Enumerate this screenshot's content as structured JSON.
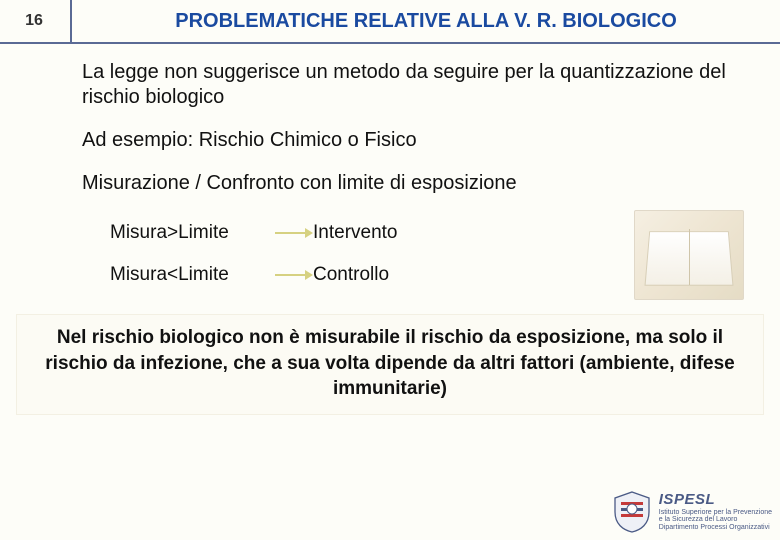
{
  "colors": {
    "title": "#1a4aa0",
    "rule": "#5a6a95",
    "arrow": "#d6d181",
    "logo_primary": "#4a5a85",
    "logo_accent": "#c43a3a"
  },
  "page_number": "16",
  "title": "PROBLEMATICHE RELATIVE ALLA V. R. BIOLOGICO",
  "para1": "La legge non suggerisce un metodo da seguire per la quantizzazione del rischio biologico",
  "para2": "Ad esempio:  Rischio Chimico o Fisico",
  "para3": "Misurazione  / Confronto con limite di esposizione",
  "comparisons": [
    {
      "left": "Misura>Limite",
      "right": "Intervento"
    },
    {
      "left": "Misura<Limite",
      "right": "Controllo"
    }
  ],
  "note": "Nel rischio biologico non è misurabile il rischio da esposizione, ma solo il rischio da infezione, che a sua volta dipende da altri fattori (ambiente, difese immunitarie)",
  "logo": {
    "acronym": "ISPESL",
    "line1": "Istituto Superiore per la Prevenzione",
    "line2": "e la Sicurezza del Lavoro",
    "line3": "Dipartimento Processi Organizzativi"
  }
}
